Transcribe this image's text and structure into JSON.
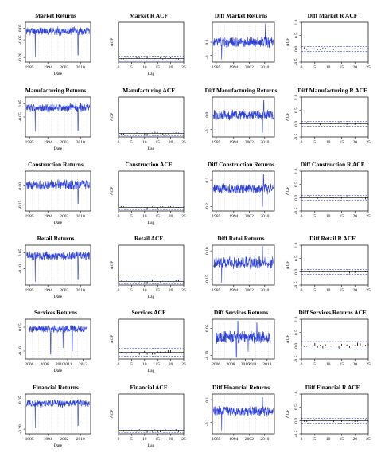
{
  "colors": {
    "series": "#2b3fd8",
    "band": "#2b3fd8",
    "axis": "#000000",
    "grid": "#bbbbbb"
  },
  "chart_data": [
    {
      "type": "line",
      "title": "Market Returns",
      "xlabel": "Date",
      "ylabel": "",
      "xlim": [
        1983,
        2015
      ],
      "ylim": [
        -0.24,
        0.1
      ],
      "xticks": [
        1985,
        1994,
        2002,
        2010
      ],
      "yticks": [
        0.05,
        -0.05,
        -0.2
      ],
      "yticklabels": [
        "0.05",
        "-0.05",
        "-0.20"
      ],
      "vol": 0.03,
      "base": 0.025,
      "spikes": [
        [
          1987.8,
          -0.2
        ],
        [
          2008.8,
          -0.18
        ]
      ],
      "seed": 11
    },
    {
      "type": "bar",
      "title": "Market R ACF",
      "xlabel": "Lag",
      "ylabel": "ACF",
      "xlim": [
        0,
        25
      ],
      "ylim": [
        -0.1,
        1.0
      ],
      "xticks": [
        0,
        5,
        10,
        15,
        20,
        25
      ],
      "yticks": [],
      "yticklabels": [],
      "band": 0.06,
      "acf_scale": 0.04,
      "seed": 21
    },
    {
      "type": "line",
      "title": "Diff  Market Returns",
      "xlabel": "",
      "ylabel": "",
      "xlim": [
        1983,
        2015
      ],
      "ylim": [
        -0.15,
        0.15
      ],
      "xticks": [
        1985,
        1994,
        2002,
        2010
      ],
      "yticks": [
        0.0,
        -0.1
      ],
      "yticklabels": [
        "0.0",
        "-0.1"
      ],
      "vol": 0.035,
      "base": 0.0,
      "spikes": [
        [
          2010.3,
          0.14
        ],
        [
          1987.8,
          -0.13
        ]
      ],
      "seed": 31
    },
    {
      "type": "bar",
      "title": "Diff  Market R ACF",
      "xlabel": "",
      "ylabel": "ACF",
      "xlim": [
        0,
        25
      ],
      "ylim": [
        -0.5,
        1.0
      ],
      "xticks": [
        0,
        5,
        10,
        15,
        20,
        25
      ],
      "yticks": [
        1.0,
        0.5,
        0.0,
        -0.5
      ],
      "yticklabels": [
        "1.0",
        "0.5",
        "0.0",
        "-0.5"
      ],
      "band": 0.09,
      "acf_scale": 0.06,
      "seed": 41
    },
    {
      "type": "line",
      "title": "Manufacturing Returns",
      "xlabel": "Date",
      "ylabel": "",
      "xlim": [
        1983,
        2015
      ],
      "ylim": [
        -0.2,
        0.1
      ],
      "xticks": [
        1985,
        1994,
        2002,
        2010
      ],
      "yticks": [
        0.05,
        -0.05
      ],
      "yticklabels": [
        "0.05",
        "-0.05"
      ],
      "vol": 0.028,
      "base": 0.02,
      "spikes": [
        [
          1987.8,
          -0.16
        ],
        [
          2008.8,
          -0.15
        ]
      ],
      "seed": 12
    },
    {
      "type": "bar",
      "title": "Manufacturing ACF",
      "xlabel": "Lag",
      "ylabel": "ACF",
      "xlim": [
        0,
        25
      ],
      "ylim": [
        -0.1,
        1.0
      ],
      "xticks": [
        0,
        5,
        10,
        15,
        20,
        25
      ],
      "yticks": [],
      "yticklabels": [],
      "band": 0.06,
      "acf_scale": 0.04,
      "seed": 22
    },
    {
      "type": "line",
      "title": "Diff  Manufacturing Returns",
      "xlabel": "",
      "ylabel": "",
      "xlim": [
        1983,
        2015
      ],
      "ylim": [
        -0.15,
        0.12
      ],
      "xticks": [
        1985,
        1994,
        2002,
        2010
      ],
      "yticks": [
        0.0,
        -0.1
      ],
      "yticklabels": [
        "0.0",
        "-0.1"
      ],
      "vol": 0.03,
      "base": 0.0,
      "spikes": [
        [
          2009.5,
          0.1
        ],
        [
          2008.8,
          -0.12
        ]
      ],
      "seed": 32
    },
    {
      "type": "bar",
      "title": "Diff  Manufacturing R ACF",
      "xlabel": "",
      "ylabel": "ACF",
      "xlim": [
        0,
        25
      ],
      "ylim": [
        -0.5,
        1.0
      ],
      "xticks": [
        0,
        5,
        10,
        15,
        20,
        25
      ],
      "yticks": [
        1.0,
        0.5,
        0.0,
        -0.5
      ],
      "yticklabels": [
        "1.0",
        "0.5",
        "0.0",
        "-0.5"
      ],
      "band": 0.09,
      "acf_scale": 0.06,
      "seed": 42
    },
    {
      "type": "line",
      "title": "Construction Returns",
      "xlabel": "Date",
      "ylabel": "",
      "xlim": [
        1983,
        2015
      ],
      "ylim": [
        -0.2,
        0.12
      ],
      "xticks": [
        1985,
        1994,
        2002,
        2010
      ],
      "yticks": [
        0.0,
        -0.15
      ],
      "yticklabels": [
        "0.00",
        "-0.15"
      ],
      "vol": 0.035,
      "base": 0.01,
      "spikes": [
        [
          2008.8,
          -0.14
        ]
      ],
      "seed": 13
    },
    {
      "type": "bar",
      "title": "Construction ACF",
      "xlabel": "Lag",
      "ylabel": "ACF",
      "xlim": [
        0,
        25
      ],
      "ylim": [
        -0.1,
        1.0
      ],
      "xticks": [
        0,
        5,
        10,
        15,
        20,
        25
      ],
      "yticks": [],
      "yticklabels": [],
      "band": 0.06,
      "acf_scale": 0.04,
      "seed": 23
    },
    {
      "type": "line",
      "title": "Diff  Construction Returns",
      "xlabel": "",
      "ylabel": "",
      "xlim": [
        1983,
        2015
      ],
      "ylim": [
        -0.25,
        0.2
      ],
      "xticks": [
        1985,
        1994,
        2002,
        2010
      ],
      "yticks": [
        0.1,
        -0.2
      ],
      "yticklabels": [
        "0.1",
        "-0.2"
      ],
      "vol": 0.05,
      "base": 0.0,
      "spikes": [
        [
          2008.8,
          -0.2
        ],
        [
          2009.4,
          0.16
        ]
      ],
      "seed": 33
    },
    {
      "type": "bar",
      "title": "Diff  Construction R ACF",
      "xlabel": "",
      "ylabel": "ACF",
      "xlim": [
        0,
        25
      ],
      "ylim": [
        -0.5,
        1.0
      ],
      "xticks": [
        0,
        5,
        10,
        15,
        20,
        25
      ],
      "yticks": [
        1.0,
        0.5,
        0.0,
        -0.5
      ],
      "yticklabels": [
        "1.0",
        "0.5",
        "0.0",
        "-0.5"
      ],
      "band": 0.09,
      "acf_scale": 0.06,
      "seed": 43
    },
    {
      "type": "line",
      "title": "Retail Returns",
      "xlabel": "Date",
      "ylabel": "",
      "xlim": [
        1983,
        2015
      ],
      "ylim": [
        -0.25,
        0.12
      ],
      "xticks": [
        1985,
        1994,
        2002,
        2010
      ],
      "yticks": [
        0.05,
        -0.1
      ],
      "yticklabels": [
        "0.05",
        "-0.10"
      ],
      "vol": 0.035,
      "base": 0.02,
      "spikes": [
        [
          1987.8,
          -0.22
        ],
        [
          2008.8,
          -0.2
        ]
      ],
      "seed": 14
    },
    {
      "type": "bar",
      "title": "Retail ACF",
      "xlabel": "Lag",
      "ylabel": "ACF",
      "xlim": [
        0,
        25
      ],
      "ylim": [
        -0.1,
        1.0
      ],
      "xticks": [
        0,
        5,
        10,
        15,
        20,
        25
      ],
      "yticks": [],
      "yticklabels": [],
      "band": 0.06,
      "acf_scale": 0.04,
      "seed": 24
    },
    {
      "type": "line",
      "title": "Diff  Retai Returns",
      "xlabel": "",
      "ylabel": "",
      "xlim": [
        1983,
        2015
      ],
      "ylim": [
        -0.2,
        0.15
      ],
      "xticks": [
        1985,
        1994,
        2002,
        2010
      ],
      "yticks": [
        0.1,
        -0.15
      ],
      "yticklabels": [
        "0.10",
        "-0.15"
      ],
      "vol": 0.05,
      "base": 0.0,
      "spikes": [
        [
          1987.8,
          -0.18
        ],
        [
          2008.8,
          0.14
        ]
      ],
      "seed": 34
    },
    {
      "type": "bar",
      "title": "Diff  Retail R ACF",
      "xlabel": "",
      "ylabel": "ACF",
      "xlim": [
        0,
        25
      ],
      "ylim": [
        -0.5,
        1.0
      ],
      "xticks": [
        0,
        5,
        10,
        15,
        20,
        25
      ],
      "yticks": [
        1.0,
        0.5,
        0.0,
        -0.5
      ],
      "yticklabels": [
        "1.0",
        "0.5",
        "0.0",
        "-0.5"
      ],
      "band": 0.09,
      "acf_scale": 0.06,
      "seed": 44
    },
    {
      "type": "line",
      "title": "Services Returns",
      "xlabel": "Date",
      "ylabel": "",
      "xlim": [
        2005.5,
        2014
      ],
      "ylim": [
        -0.15,
        0.1
      ],
      "xticks": [
        2006,
        2008,
        2010,
        2011,
        2013
      ],
      "yticks": [
        0.05,
        -0.1
      ],
      "yticklabels": [
        "0.05",
        "-0.10"
      ],
      "vol": 0.02,
      "base": 0.04,
      "spikes": [
        [
          2008.8,
          -0.12
        ],
        [
          2010.4,
          -0.08
        ],
        [
          2011.6,
          -0.1
        ]
      ],
      "seed": 15
    },
    {
      "type": "bar",
      "title": "Services ACF",
      "xlabel": "Lag",
      "ylabel": "ACF",
      "xlim": [
        0,
        25
      ],
      "ylim": [
        -0.2,
        1.0
      ],
      "xticks": [
        0,
        5,
        10,
        15,
        20,
        25
      ],
      "yticks": [],
      "yticklabels": [],
      "band": 0.12,
      "acf_scale": 0.08,
      "seed": 25
    },
    {
      "type": "line",
      "title": "Diff  Services Returns",
      "xlabel": "",
      "ylabel": "",
      "xlim": [
        2005.5,
        2014
      ],
      "ylim": [
        -0.12,
        0.1
      ],
      "xticks": [
        2006,
        2008,
        2010,
        2011,
        2013
      ],
      "yticks": [
        0.05,
        -0.1
      ],
      "yticklabels": [
        "0.05",
        "-0.10"
      ],
      "vol": 0.03,
      "base": 0.0,
      "spikes": [
        [
          2008.8,
          -0.11
        ],
        [
          2009.0,
          0.09
        ],
        [
          2010.4,
          -0.08
        ],
        [
          2011.6,
          0.08
        ]
      ],
      "seed": 35
    },
    {
      "type": "bar",
      "title": "Diff  Services Returns ACF",
      "xlabel": "",
      "ylabel": "ACF",
      "xlim": [
        0,
        25
      ],
      "ylim": [
        -0.5,
        1.0
      ],
      "xticks": [
        0,
        5,
        10,
        15,
        20,
        25
      ],
      "yticks": [
        1.0,
        0.5,
        0.0,
        -0.5
      ],
      "yticklabels": [
        "1.0",
        "0.5",
        "0.0",
        "-0.5"
      ],
      "band": 0.16,
      "acf_scale": 0.12,
      "seed": 45
    },
    {
      "type": "line",
      "title": "Financial Returns",
      "xlabel": "Date",
      "ylabel": "",
      "xlim": [
        1983,
        2015
      ],
      "ylim": [
        -0.24,
        0.1
      ],
      "xticks": [
        1985,
        1994,
        2002,
        2010
      ],
      "yticks": [
        0.05,
        -0.2
      ],
      "yticklabels": [
        "0.05",
        "-0.20"
      ],
      "vol": 0.028,
      "base": 0.02,
      "spikes": [
        [
          1987.8,
          -0.19
        ],
        [
          2008.8,
          -0.17
        ]
      ],
      "seed": 16
    },
    {
      "type": "bar",
      "title": "Financial ACF",
      "xlabel": "Lag",
      "ylabel": "ACF",
      "xlim": [
        0,
        25
      ],
      "ylim": [
        -0.1,
        1.0
      ],
      "xticks": [
        0,
        5,
        10,
        15,
        20,
        25
      ],
      "yticks": [],
      "yticklabels": [],
      "band": 0.06,
      "acf_scale": 0.04,
      "seed": 26
    },
    {
      "type": "line",
      "title": "Diff  Financial Returns",
      "xlabel": "",
      "ylabel": "",
      "xlim": [
        1983,
        2015
      ],
      "ylim": [
        -0.2,
        0.15
      ],
      "xticks": [
        1985,
        1994,
        2002,
        2010
      ],
      "yticks": [
        0.1,
        -0.1
      ],
      "yticklabels": [
        "0.1",
        "-0.1"
      ],
      "vol": 0.04,
      "base": 0.0,
      "spikes": [
        [
          1987.8,
          -0.17
        ],
        [
          2008.8,
          0.12
        ]
      ],
      "seed": 36
    },
    {
      "type": "bar",
      "title": "Diff  Financial R ACF",
      "xlabel": "",
      "ylabel": "ACF",
      "xlim": [
        0,
        25
      ],
      "ylim": [
        -0.5,
        1.0
      ],
      "xticks": [
        0,
        5,
        10,
        15,
        20,
        25
      ],
      "yticks": [
        1.0,
        0.5,
        0.0,
        -0.5
      ],
      "yticklabels": [
        "1.0",
        "0.5",
        "0.0",
        "-0.5"
      ],
      "band": 0.09,
      "acf_scale": 0.06,
      "seed": 46
    }
  ]
}
